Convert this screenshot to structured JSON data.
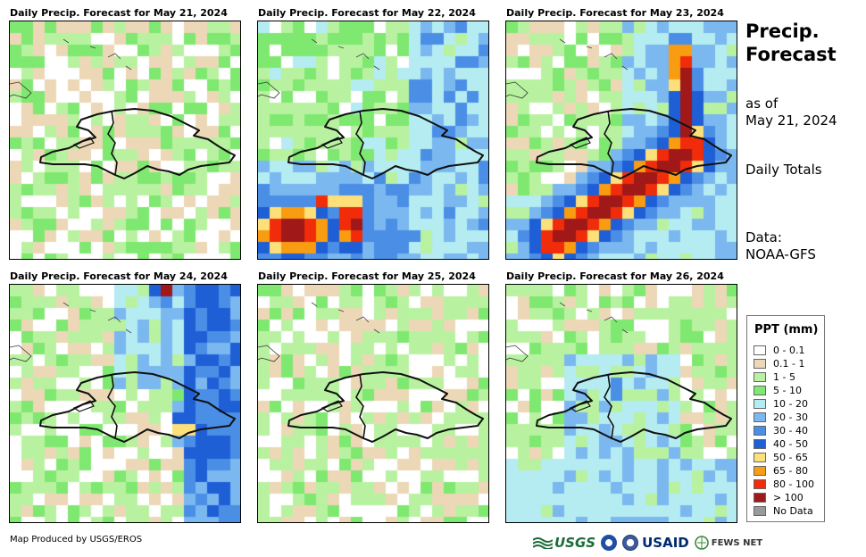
{
  "panels": [
    {
      "title": "Daily Precip. Forecast for May 21, 2024",
      "pattern": "d1"
    },
    {
      "title": "Daily Precip. Forecast for May 22, 2024",
      "pattern": "d2"
    },
    {
      "title": "Daily Precip. Forecast for May 23, 2024",
      "pattern": "d3"
    },
    {
      "title": "Daily Precip. Forecast for May 24, 2024",
      "pattern": "d4"
    },
    {
      "title": "Daily Precip. Forecast for May 25, 2024",
      "pattern": "d5"
    },
    {
      "title": "Daily Precip. Forecast for May 26, 2024",
      "pattern": "d6"
    }
  ],
  "side": {
    "title_line1": "Precip.",
    "title_line2": "Forecast",
    "asof_line1": "as of",
    "asof_line2": "May 21, 2024",
    "totals": "Daily Totals",
    "data_line1": "Data:",
    "data_line2": "NOAA-GFS"
  },
  "legend": {
    "title": "PPT (mm)",
    "items": [
      {
        "label": "0 - 0.1",
        "color": "#ffffff"
      },
      {
        "label": "0.1 - 1",
        "color": "#ecd8b6"
      },
      {
        "label": "1 - 5",
        "color": "#b8f2a0"
      },
      {
        "label": "5 - 10",
        "color": "#7fe870"
      },
      {
        "label": "10 - 20",
        "color": "#b4ecf2"
      },
      {
        "label": "20 - 30",
        "color": "#7ab8ef"
      },
      {
        "label": "30 - 40",
        "color": "#4b8ee6"
      },
      {
        "label": "40 - 50",
        "color": "#1f5fd6"
      },
      {
        "label": "50 - 65",
        "color": "#fde07a"
      },
      {
        "label": "65 - 80",
        "color": "#f89c12"
      },
      {
        "label": "80 - 100",
        "color": "#f02c0a"
      },
      {
        "label": "> 100",
        "color": "#a01818"
      },
      {
        "label": "No Data",
        "color": "#999999"
      }
    ]
  },
  "credit": "Map Produced by USGS/EROS",
  "logos": {
    "usgs": "USGS",
    "usaid": "USAID",
    "fews": "FEWS NET"
  }
}
